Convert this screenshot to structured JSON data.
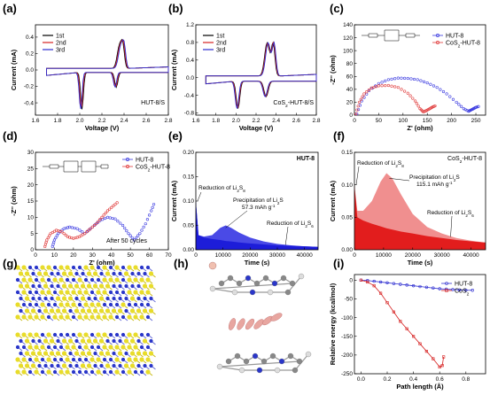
{
  "figure": {
    "panel_labels": [
      "(a)",
      "(b)",
      "(c)",
      "(d)",
      "(e)",
      "(f)",
      "(g)",
      "(h)",
      "(i)"
    ],
    "colors": {
      "black": "#000000",
      "red": "#d62020",
      "blue": "#2d2dd0",
      "eblue": "#1d1dd9",
      "fred": "#e21d1d",
      "fpink": "#f08f8f",
      "open_red": "#e03a3a",
      "open_blue": "#3a3ae0",
      "s_yellow": "#e8dc2a",
      "n_blue": "#2a36c9",
      "li_pink": "#e8a6a0"
    }
  },
  "chart_data": [
    {
      "id": "a",
      "type": "line",
      "xlabel": "Voltage (V)",
      "ylabel": "Current (mA)",
      "xlim": [
        1.6,
        2.8
      ],
      "ylim": [
        -0.55,
        0.55
      ],
      "xticks": [
        "1.6",
        "1.8",
        "2.0",
        "2.2",
        "2.4",
        "2.6",
        "2.8"
      ],
      "yticks": [
        "-0.4",
        "-0.2",
        "0.0",
        "0.2",
        "0.4"
      ],
      "annotation": "HUT-8/S",
      "series": [
        {
          "name": "1st",
          "color": "#000000"
        },
        {
          "name": "2nd",
          "color": "#d62020"
        },
        {
          "name": "3rd",
          "color": "#2d2dd0"
        }
      ]
    },
    {
      "id": "b",
      "type": "line",
      "xlabel": "Voltage (V)",
      "ylabel": "Current (mA)",
      "xlim": [
        1.6,
        2.8
      ],
      "ylim": [
        -0.85,
        1.2
      ],
      "xticks": [
        "1.6",
        "1.8",
        "2.0",
        "2.2",
        "2.4",
        "2.6",
        "2.8"
      ],
      "yticks": [
        "-0.8",
        "-0.4",
        "0.0",
        "0.4",
        "0.8",
        "1.2"
      ],
      "annotation": "CoS2-HUT-8/S",
      "series": [
        {
          "name": "1st",
          "color": "#000000"
        },
        {
          "name": "2nd",
          "color": "#d62020"
        },
        {
          "name": "3rd",
          "color": "#2d2dd0"
        }
      ]
    },
    {
      "id": "c",
      "type": "scatter",
      "xlabel": "Z' (ohm)",
      "ylabel": "-Z'' (ohm)",
      "xlim": [
        0,
        270
      ],
      "ylim": [
        0,
        140
      ],
      "xticks": [
        "0",
        "50",
        "100",
        "150",
        "200",
        "250"
      ],
      "yticks": [
        "0",
        "20",
        "40",
        "60",
        "80",
        "100",
        "120",
        "140"
      ],
      "series": [
        {
          "name": "HUT-8",
          "color": "#3a3ae0",
          "x": [
            5,
            15,
            30,
            50,
            70,
            90,
            110,
            130,
            150,
            170,
            190,
            210,
            225,
            235,
            240,
            245,
            250,
            258
          ],
          "y": [
            2,
            22,
            38,
            49,
            55,
            57.5,
            57,
            55,
            50,
            43,
            33,
            20,
            10,
            6,
            8,
            10,
            12,
            14
          ]
        },
        {
          "name": "CoS2-HUT-8",
          "color": "#e03a3a",
          "x": [
            3,
            10,
            20,
            35,
            50,
            70,
            90,
            110,
            125,
            135,
            142,
            148,
            155,
            162,
            168
          ],
          "y": [
            2,
            20,
            33,
            42,
            45.5,
            46,
            43,
            34,
            22,
            10,
            5,
            7,
            10,
            13,
            15
          ]
        }
      ]
    },
    {
      "id": "d",
      "type": "scatter",
      "xlabel": "Z' (ohm)",
      "ylabel": "-Z'' (ohm)",
      "xlim": [
        0,
        70
      ],
      "ylim": [
        0,
        30
      ],
      "xticks": [
        "0",
        "10",
        "20",
        "30",
        "40",
        "50",
        "60",
        "70"
      ],
      "yticks": [
        "0",
        "5",
        "10",
        "15",
        "20",
        "25",
        "30"
      ],
      "annotation": "After 50 cycles",
      "series": [
        {
          "name": "HUT-8",
          "color": "#3a3ae0",
          "x": [
            9,
            10,
            12,
            15,
            18,
            22,
            26,
            30,
            34,
            38,
            42,
            46,
            49,
            52,
            55,
            58,
            61,
            63
          ],
          "y": [
            1,
            3,
            5,
            6.5,
            7,
            6.5,
            5,
            7,
            9,
            10,
            9.5,
            7.5,
            5,
            3,
            5,
            8,
            12,
            15
          ]
        },
        {
          "name": "CoS2-HUT-8",
          "color": "#e03a3a",
          "x": [
            5,
            6,
            8,
            11,
            14,
            17,
            20,
            23,
            26,
            29,
            32,
            35,
            38,
            41,
            44
          ],
          "y": [
            1,
            3,
            5,
            6,
            5.5,
            4,
            3.5,
            4,
            5,
            6.5,
            8,
            10,
            12,
            13.5,
            15
          ]
        }
      ]
    },
    {
      "id": "e",
      "type": "area",
      "title": "HUT-8",
      "xlabel": "Time (s)",
      "ylabel": "Current (mA)",
      "xlim": [
        0,
        45000
      ],
      "ylim": [
        0,
        0.2
      ],
      "xticks": [
        "0",
        "10000",
        "20000",
        "30000",
        "40000"
      ],
      "yticks": [
        "0.00",
        "0.05",
        "0.10",
        "0.15",
        "0.20"
      ],
      "annotations": [
        "Reduction of Li2S8",
        "Precipitation of Li2S",
        "57.3 mAh g-1",
        "Reduction of Li2S6"
      ],
      "x": [
        0,
        1000,
        3000,
        6000,
        9000,
        11000,
        13000,
        16000,
        20000,
        25000,
        30000,
        35000,
        40000,
        45000
      ],
      "series": [
        {
          "name": "",
          "color": "#1d1dd9",
          "values": [
            0.1,
            0.03,
            0.025,
            0.022,
            0.02,
            0.018,
            0.017,
            0.015,
            0.013,
            0.011,
            0.009,
            0.008,
            0.007,
            0.006
          ]
        },
        {
          "name": "",
          "color": "#4a4ae6",
          "values": [
            0.1,
            0.03,
            0.027,
            0.03,
            0.045,
            0.05,
            0.045,
            0.035,
            0.025,
            0.017,
            0.012,
            0.009,
            0.007,
            0.006
          ]
        }
      ]
    },
    {
      "id": "f",
      "type": "area",
      "title": "CoS2-HUT-8",
      "xlabel": "Time (s)",
      "ylabel": "Current (mA)",
      "xlim": [
        0,
        45000
      ],
      "ylim": [
        0,
        0.15
      ],
      "xticks": [
        "0",
        "10000",
        "20000",
        "30000",
        "40000"
      ],
      "yticks": [
        "0.00",
        "0.05",
        "0.10",
        "0.15"
      ],
      "annotations": [
        "Reduction of Li2S8",
        "Precipitation of Li2S",
        "115.1 mAh g-1",
        "Reduction of Li2S6"
      ],
      "x": [
        0,
        1000,
        3000,
        6000,
        9000,
        11000,
        13000,
        16000,
        20000,
        25000,
        30000,
        35000,
        40000,
        45000
      ],
      "series": [
        {
          "name": "",
          "color": "#e21d1d",
          "values": [
            0.1,
            0.05,
            0.045,
            0.04,
            0.036,
            0.033,
            0.031,
            0.028,
            0.025,
            0.021,
            0.018,
            0.015,
            0.013,
            0.011
          ]
        },
        {
          "name": "",
          "color": "#f08f8f",
          "values": [
            0.1,
            0.06,
            0.06,
            0.075,
            0.105,
            0.118,
            0.11,
            0.085,
            0.055,
            0.035,
            0.025,
            0.018,
            0.014,
            0.011
          ]
        }
      ]
    },
    {
      "id": "i",
      "type": "line",
      "xlabel": "Path length (Å)",
      "ylabel": "Relative energy (kcal/mol)",
      "xlim": [
        -0.05,
        0.95
      ],
      "ylim": [
        -250,
        15
      ],
      "xticks": [
        "0.0",
        "0.2",
        "0.4",
        "0.6",
        "0.8"
      ],
      "yticks": [
        "0",
        "-50",
        "-100",
        "-150",
        "-200",
        "-250"
      ],
      "series": [
        {
          "name": "HUT-8",
          "color": "#2d2dd0",
          "x": [
            0,
            0.05,
            0.1,
            0.15,
            0.2,
            0.25,
            0.3,
            0.35,
            0.4,
            0.45,
            0.5,
            0.55,
            0.6,
            0.65,
            0.7,
            0.75,
            0.8,
            0.85
          ],
          "values": [
            0,
            -1,
            -3,
            -5,
            -7,
            -9,
            -11,
            -13,
            -15,
            -17,
            -19,
            -21,
            -23,
            -24,
            -25,
            -26,
            -27,
            -27
          ]
        },
        {
          "name": "CoS2",
          "color": "#d62020",
          "x": [
            0,
            0.05,
            0.1,
            0.15,
            0.2,
            0.25,
            0.3,
            0.35,
            0.4,
            0.45,
            0.5,
            0.55,
            0.6,
            0.62,
            0.63
          ],
          "values": [
            0,
            -5,
            -15,
            -35,
            -60,
            -85,
            -110,
            -130,
            -150,
            -170,
            -190,
            -210,
            -232,
            -228,
            -205
          ]
        }
      ]
    }
  ]
}
